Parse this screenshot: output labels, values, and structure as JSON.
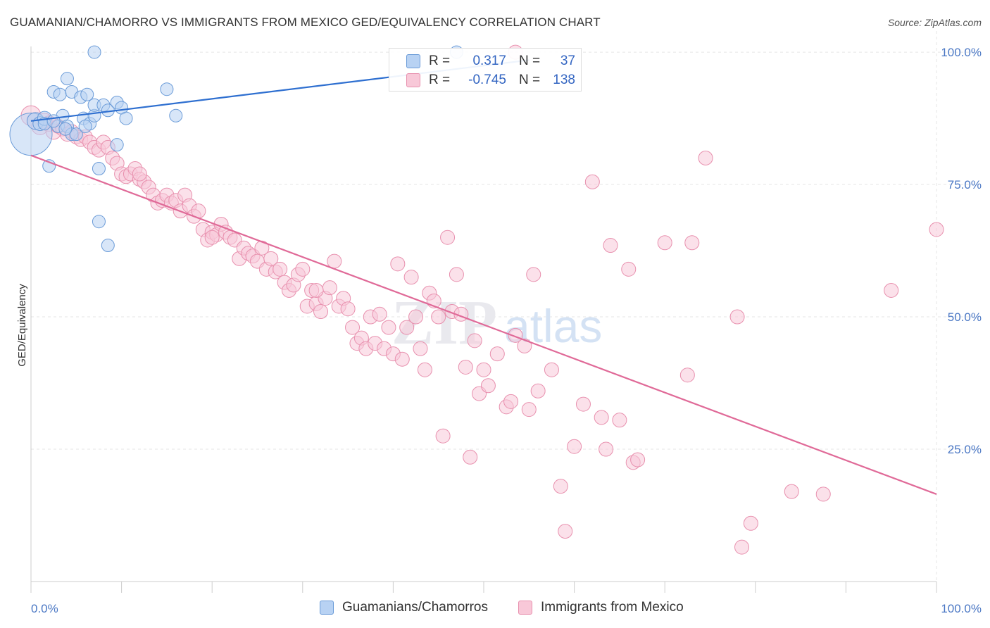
{
  "header": {
    "title": "GUAMANIAN/CHAMORRO VS IMMIGRANTS FROM MEXICO GED/EQUIVALENCY CORRELATION CHART",
    "source": "Source: ZipAtlas.com"
  },
  "legend_stats": {
    "r_label": "R =",
    "n_label": "N =",
    "blue": {
      "r": "0.317",
      "n": "37"
    },
    "pink": {
      "r": "-0.745",
      "n": "138"
    }
  },
  "watermark": {
    "zip": "ZIP",
    "atlas": "atlas"
  },
  "colors": {
    "blue_fill": "#b8d2f3",
    "blue_stroke": "#6a9bd8",
    "blue_line": "#2e6fd0",
    "pink_fill": "#f8c8d8",
    "pink_stroke": "#e890ae",
    "pink_line": "#e06a98",
    "axis_label": "#4a77c4",
    "grid": "#e5e5e5"
  },
  "chart_data": {
    "type": "scatter",
    "title": "GUAMANIAN/CHAMORRO VS IMMIGRANTS FROM MEXICO GED/EQUIVALENCY CORRELATION CHART",
    "xlabel": "",
    "ylabel": "GED/Equivalency",
    "xlim": [
      0,
      100
    ],
    "ylim": [
      0,
      104
    ],
    "x_tick_labels": [
      "0.0%",
      "100.0%"
    ],
    "y_ticks": [
      25,
      50,
      75,
      100
    ],
    "y_tick_labels": [
      "25.0%",
      "50.0%",
      "75.0%",
      "100.0%"
    ],
    "grid": true,
    "legend_position": "bottom",
    "series": [
      {
        "name": "Guamanians/Chamorros",
        "color": "#b8d2f3",
        "r": 0.317,
        "n": 37,
        "trend": {
          "x": [
            0,
            55
          ],
          "y": [
            87.0,
            98.5
          ]
        },
        "points": [
          [
            0.0,
            84.5,
            30
          ],
          [
            0.5,
            87.0,
            12
          ],
          [
            1.0,
            86.5,
            10
          ],
          [
            1.5,
            87.5,
            10
          ],
          [
            2.0,
            78.5,
            9
          ],
          [
            2.5,
            92.5,
            9
          ],
          [
            3.0,
            86.0,
            9
          ],
          [
            3.2,
            92.0,
            9
          ],
          [
            3.5,
            88.0,
            9
          ],
          [
            4.0,
            86.0,
            9
          ],
          [
            4.5,
            84.5,
            9
          ],
          [
            4.0,
            95.0,
            9
          ],
          [
            4.5,
            92.5,
            9
          ],
          [
            5.0,
            84.5,
            9
          ],
          [
            5.5,
            91.5,
            9
          ],
          [
            5.8,
            87.5,
            9
          ],
          [
            6.2,
            92.0,
            9
          ],
          [
            6.5,
            86.5,
            9
          ],
          [
            7.0,
            88.0,
            9
          ],
          [
            7.0,
            90.0,
            9
          ],
          [
            7.5,
            68.0,
            9
          ],
          [
            7.0,
            100.0,
            9
          ],
          [
            7.5,
            78.0,
            9
          ],
          [
            8.0,
            90.0,
            9
          ],
          [
            8.5,
            89.0,
            9
          ],
          [
            8.5,
            63.5,
            9
          ],
          [
            9.5,
            82.5,
            9
          ],
          [
            9.5,
            90.5,
            9
          ],
          [
            10.0,
            89.5,
            9
          ],
          [
            10.5,
            87.5,
            9
          ],
          [
            15.0,
            93.0,
            9
          ],
          [
            16.0,
            88.0,
            9
          ],
          [
            47.0,
            100.0,
            9
          ],
          [
            1.5,
            86.5,
            9
          ],
          [
            2.5,
            87.0,
            9
          ],
          [
            3.8,
            85.5,
            9
          ],
          [
            6.0,
            86.0,
            9
          ]
        ]
      },
      {
        "name": "Immigrants from Mexico",
        "color": "#f8c8d8",
        "r": -0.745,
        "n": 138,
        "trend": {
          "x": [
            0,
            100
          ],
          "y": [
            80.5,
            16.5
          ]
        },
        "points": [
          [
            0.0,
            88.0,
            14
          ],
          [
            0.5,
            87.0,
            12
          ],
          [
            1.0,
            86.0,
            12
          ],
          [
            1.5,
            87.0,
            11
          ],
          [
            2.0,
            86.5,
            11
          ],
          [
            2.5,
            85.0,
            11
          ],
          [
            3.0,
            86.0,
            10
          ],
          [
            3.5,
            85.5,
            10
          ],
          [
            4.0,
            84.5,
            10
          ],
          [
            4.5,
            85.0,
            10
          ],
          [
            5.0,
            84.0,
            10
          ],
          [
            5.5,
            83.5,
            10
          ],
          [
            6.0,
            84.0,
            10
          ],
          [
            6.5,
            83.0,
            10
          ],
          [
            7.0,
            82.0,
            10
          ],
          [
            7.5,
            81.5,
            10
          ],
          [
            8.0,
            83.0,
            10
          ],
          [
            8.5,
            82.0,
            10
          ],
          [
            9.0,
            80.0,
            10
          ],
          [
            9.5,
            79.0,
            10
          ],
          [
            10.0,
            77.0,
            10
          ],
          [
            10.5,
            76.5,
            10
          ],
          [
            11.0,
            77.0,
            10
          ],
          [
            11.5,
            78.0,
            10
          ],
          [
            12.0,
            76.0,
            10
          ],
          [
            12.5,
            75.5,
            10
          ],
          [
            13.0,
            74.5,
            10
          ],
          [
            13.5,
            73.0,
            10
          ],
          [
            14.0,
            71.5,
            10
          ],
          [
            14.5,
            72.0,
            10
          ],
          [
            15.0,
            73.0,
            10
          ],
          [
            15.5,
            71.5,
            10
          ],
          [
            16.0,
            72.0,
            10
          ],
          [
            16.5,
            70.0,
            10
          ],
          [
            17.0,
            73.0,
            10
          ],
          [
            17.5,
            71.0,
            10
          ],
          [
            18.0,
            69.0,
            10
          ],
          [
            18.5,
            70.0,
            10
          ],
          [
            19.0,
            66.5,
            10
          ],
          [
            19.5,
            64.5,
            10
          ],
          [
            20.0,
            66.0,
            10
          ],
          [
            20.5,
            65.5,
            10
          ],
          [
            21.0,
            67.5,
            10
          ],
          [
            21.5,
            66.0,
            10
          ],
          [
            22.0,
            65.0,
            10
          ],
          [
            22.5,
            64.5,
            10
          ],
          [
            23.0,
            61.0,
            10
          ],
          [
            23.5,
            63.0,
            10
          ],
          [
            24.0,
            62.0,
            10
          ],
          [
            24.5,
            61.5,
            10
          ],
          [
            25.0,
            60.5,
            10
          ],
          [
            25.5,
            63.0,
            10
          ],
          [
            26.0,
            59.0,
            10
          ],
          [
            26.5,
            61.0,
            10
          ],
          [
            27.0,
            58.5,
            10
          ],
          [
            27.5,
            59.0,
            10
          ],
          [
            28.0,
            56.5,
            10
          ],
          [
            28.5,
            55.0,
            10
          ],
          [
            29.0,
            56.0,
            10
          ],
          [
            29.5,
            58.0,
            10
          ],
          [
            30.0,
            59.0,
            10
          ],
          [
            30.5,
            52.0,
            10
          ],
          [
            31.0,
            55.0,
            10
          ],
          [
            31.5,
            52.5,
            10
          ],
          [
            32.0,
            51.0,
            10
          ],
          [
            32.5,
            53.5,
            10
          ],
          [
            33.0,
            55.5,
            10
          ],
          [
            33.5,
            60.5,
            10
          ],
          [
            34.0,
            52.0,
            10
          ],
          [
            34.5,
            53.5,
            10
          ],
          [
            35.0,
            51.5,
            10
          ],
          [
            35.5,
            48.0,
            10
          ],
          [
            36.0,
            45.0,
            10
          ],
          [
            36.5,
            46.0,
            10
          ],
          [
            37.0,
            44.0,
            10
          ],
          [
            37.5,
            50.0,
            10
          ],
          [
            38.0,
            45.0,
            10
          ],
          [
            38.5,
            50.5,
            10
          ],
          [
            39.0,
            44.0,
            10
          ],
          [
            39.5,
            48.0,
            10
          ],
          [
            40.0,
            43.0,
            10
          ],
          [
            40.5,
            60.0,
            10
          ],
          [
            41.0,
            42.0,
            10
          ],
          [
            41.5,
            48.0,
            10
          ],
          [
            42.0,
            57.5,
            10
          ],
          [
            42.5,
            50.0,
            10
          ],
          [
            43.0,
            44.0,
            10
          ],
          [
            43.5,
            40.0,
            10
          ],
          [
            44.0,
            54.5,
            10
          ],
          [
            44.5,
            53.0,
            10
          ],
          [
            45.0,
            50.0,
            10
          ],
          [
            45.5,
            27.5,
            10
          ],
          [
            46.0,
            65.0,
            10
          ],
          [
            46.5,
            51.0,
            10
          ],
          [
            47.0,
            58.0,
            10
          ],
          [
            47.5,
            50.5,
            10
          ],
          [
            48.0,
            40.5,
            10
          ],
          [
            48.5,
            23.5,
            10
          ],
          [
            49.0,
            45.5,
            10
          ],
          [
            49.5,
            35.5,
            10
          ],
          [
            50.0,
            40.0,
            10
          ],
          [
            50.5,
            37.0,
            10
          ],
          [
            51.5,
            43.0,
            10
          ],
          [
            52.5,
            33.0,
            10
          ],
          [
            53.0,
            34.0,
            10
          ],
          [
            53.5,
            46.5,
            10
          ],
          [
            54.5,
            44.5,
            10
          ],
          [
            55.0,
            32.5,
            10
          ],
          [
            55.5,
            58.0,
            10
          ],
          [
            56.0,
            36.0,
            10
          ],
          [
            57.5,
            40.0,
            10
          ],
          [
            58.5,
            18.0,
            10
          ],
          [
            59.0,
            9.5,
            10
          ],
          [
            60.0,
            25.5,
            10
          ],
          [
            61.0,
            33.5,
            10
          ],
          [
            62.0,
            75.5,
            10
          ],
          [
            63.0,
            31.0,
            10
          ],
          [
            63.5,
            25.0,
            10
          ],
          [
            64.0,
            63.5,
            10
          ],
          [
            65.0,
            30.5,
            10
          ],
          [
            66.0,
            59.0,
            10
          ],
          [
            66.5,
            22.5,
            10
          ],
          [
            67.0,
            23.0,
            10
          ],
          [
            70.0,
            64.0,
            10
          ],
          [
            72.5,
            39.0,
            10
          ],
          [
            73.0,
            64.0,
            10
          ],
          [
            74.5,
            80.0,
            10
          ],
          [
            78.0,
            50.0,
            10
          ],
          [
            78.5,
            6.5,
            10
          ],
          [
            79.5,
            11.0,
            10
          ],
          [
            84.0,
            17.0,
            10
          ],
          [
            87.5,
            16.5,
            10
          ],
          [
            95.0,
            55.0,
            10
          ],
          [
            100.0,
            66.5,
            10
          ],
          [
            53.5,
            100.0,
            10
          ],
          [
            12.0,
            77.0,
            10
          ],
          [
            20.0,
            65.0,
            10
          ],
          [
            31.5,
            55.0,
            10
          ]
        ]
      }
    ]
  },
  "bottom_legend": {
    "items": [
      {
        "label": "Guamanians/Chamorros"
      },
      {
        "label": "Immigrants from Mexico"
      }
    ]
  }
}
